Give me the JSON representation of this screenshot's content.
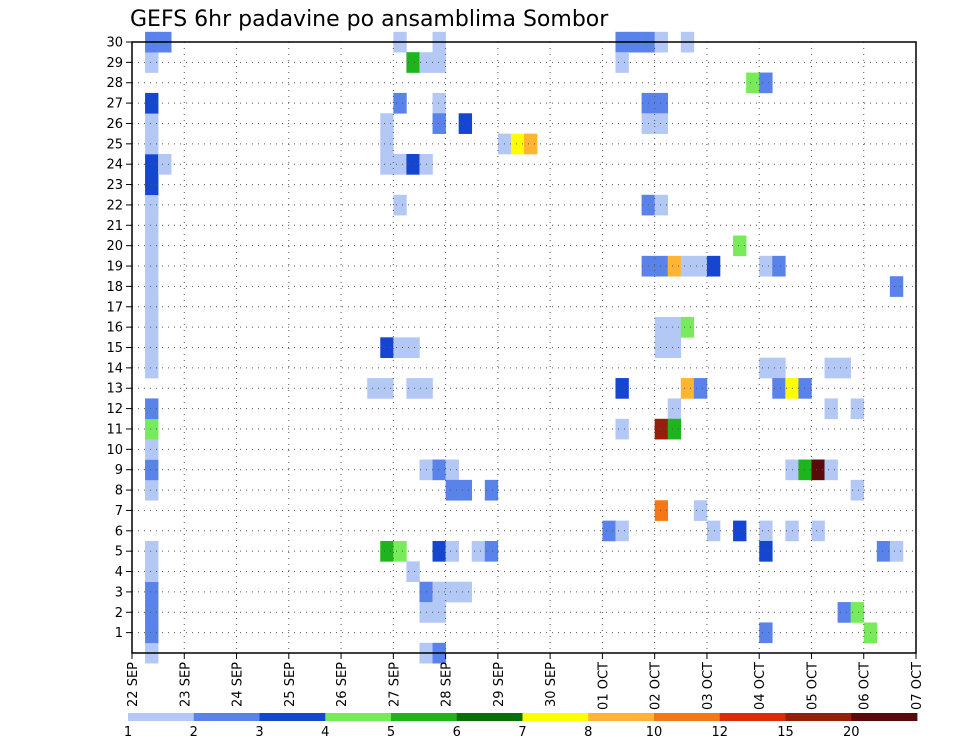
{
  "chart_data": {
    "type": "heatmap",
    "title": "GEFS 6hr padavine po ansamblima Sombor",
    "xlabel": "",
    "ylabel": "",
    "x_ticks": [
      "22 SEP",
      "23 SEP",
      "24 SEP",
      "25 SEP",
      "26 SEP",
      "27 SEP",
      "28 SEP",
      "29 SEP",
      "30 SEP",
      "01 OCT",
      "02 OCT",
      "03 OCT",
      "04 OCT",
      "05 OCT",
      "06 OCT",
      "07 OCT"
    ],
    "y_ticks": [
      1,
      2,
      3,
      4,
      5,
      6,
      7,
      8,
      9,
      10,
      11,
      12,
      13,
      14,
      15,
      16,
      17,
      18,
      19,
      20,
      21,
      22,
      23,
      24,
      25,
      26,
      27,
      28,
      29,
      30
    ],
    "xlim": [
      0,
      60
    ],
    "ylim": [
      0,
      30
    ],
    "grid": true,
    "x_unit": "6-hour steps from 22 SEP 00Z",
    "y_unit": "ensemble member",
    "colorbar": {
      "labels": [
        "1",
        "2",
        "3",
        "4",
        "5",
        "6",
        "7",
        "8",
        "10",
        "12",
        "15",
        "20"
      ],
      "colors": [
        "#b4c8f5",
        "#5a82eb",
        "#1446d2",
        "#78eb5a",
        "#1eb41e",
        "#0a6e0a",
        "#ffff00",
        "#ffb432",
        "#f57814",
        "#dc2d0a",
        "#961e0a",
        "#5a0a0a"
      ]
    },
    "cells": [
      {
        "x": 1,
        "y": 0,
        "v": 1
      },
      {
        "x": 1,
        "y": 1,
        "v": 2
      },
      {
        "x": 1,
        "y": 2,
        "v": 2
      },
      {
        "x": 1,
        "y": 3,
        "v": 2
      },
      {
        "x": 1,
        "y": 4,
        "v": 1
      },
      {
        "x": 1,
        "y": 5,
        "v": 1
      },
      {
        "x": 1,
        "y": 8,
        "v": 1
      },
      {
        "x": 1,
        "y": 9,
        "v": 2
      },
      {
        "x": 1,
        "y": 10,
        "v": 1
      },
      {
        "x": 1,
        "y": 11,
        "v": 4
      },
      {
        "x": 1,
        "y": 12,
        "v": 2
      },
      {
        "x": 1,
        "y": 14,
        "v": 1
      },
      {
        "x": 1,
        "y": 15,
        "v": 1
      },
      {
        "x": 1,
        "y": 16,
        "v": 1
      },
      {
        "x": 1,
        "y": 17,
        "v": 1
      },
      {
        "x": 1,
        "y": 18,
        "v": 1
      },
      {
        "x": 1,
        "y": 19,
        "v": 1
      },
      {
        "x": 1,
        "y": 20,
        "v": 1
      },
      {
        "x": 1,
        "y": 21,
        "v": 1
      },
      {
        "x": 1,
        "y": 22,
        "v": 1
      },
      {
        "x": 1,
        "y": 23,
        "v": 3
      },
      {
        "x": 1,
        "y": 24,
        "v": 3
      },
      {
        "x": 1,
        "y": 25,
        "v": 1
      },
      {
        "x": 1,
        "y": 26,
        "v": 1
      },
      {
        "x": 1,
        "y": 27,
        "v": 3
      },
      {
        "x": 1,
        "y": 29,
        "v": 1
      },
      {
        "x": 1,
        "y": 30,
        "v": 2
      },
      {
        "x": 2,
        "y": 30,
        "v": 2
      },
      {
        "x": 2,
        "y": 24,
        "v": 1
      },
      {
        "x": 18,
        "y": 13,
        "v": 1
      },
      {
        "x": 19,
        "y": 13,
        "v": 1
      },
      {
        "x": 19,
        "y": 25,
        "v": 1
      },
      {
        "x": 19,
        "y": 26,
        "v": 1
      },
      {
        "x": 20,
        "y": 30,
        "v": 1
      },
      {
        "x": 19,
        "y": 24,
        "v": 1
      },
      {
        "x": 20,
        "y": 24,
        "v": 1
      },
      {
        "x": 20,
        "y": 27,
        "v": 2
      },
      {
        "x": 20,
        "y": 22,
        "v": 1
      },
      {
        "x": 19,
        "y": 15,
        "v": 3
      },
      {
        "x": 20,
        "y": 15,
        "v": 1
      },
      {
        "x": 21,
        "y": 15,
        "v": 1
      },
      {
        "x": 19,
        "y": 5,
        "v": 5
      },
      {
        "x": 20,
        "y": 5,
        "v": 4
      },
      {
        "x": 21,
        "y": 4,
        "v": 1
      },
      {
        "x": 21,
        "y": 24,
        "v": 3
      },
      {
        "x": 22,
        "y": 24,
        "v": 1
      },
      {
        "x": 21,
        "y": 29,
        "v": 5
      },
      {
        "x": 22,
        "y": 29,
        "v": 1
      },
      {
        "x": 23,
        "y": 29,
        "v": 1
      },
      {
        "x": 23,
        "y": 30,
        "v": 1
      },
      {
        "x": 23,
        "y": 27,
        "v": 1
      },
      {
        "x": 23,
        "y": 26,
        "v": 2
      },
      {
        "x": 25,
        "y": 26,
        "v": 3
      },
      {
        "x": 21,
        "y": 13,
        "v": 1
      },
      {
        "x": 22,
        "y": 13,
        "v": 1
      },
      {
        "x": 22,
        "y": 9,
        "v": 1
      },
      {
        "x": 23,
        "y": 9,
        "v": 2
      },
      {
        "x": 24,
        "y": 9,
        "v": 1
      },
      {
        "x": 24,
        "y": 8,
        "v": 2
      },
      {
        "x": 25,
        "y": 8,
        "v": 2
      },
      {
        "x": 22,
        "y": 3,
        "v": 2
      },
      {
        "x": 23,
        "y": 3,
        "v": 1
      },
      {
        "x": 24,
        "y": 3,
        "v": 1
      },
      {
        "x": 22,
        "y": 2,
        "v": 1
      },
      {
        "x": 23,
        "y": 2,
        "v": 1
      },
      {
        "x": 22,
        "y": 0,
        "v": 1
      },
      {
        "x": 23,
        "y": 0,
        "v": 2
      },
      {
        "x": 23,
        "y": 5,
        "v": 3
      },
      {
        "x": 24,
        "y": 5,
        "v": 1
      },
      {
        "x": 26,
        "y": 5,
        "v": 1
      },
      {
        "x": 27,
        "y": 5,
        "v": 2
      },
      {
        "x": 27,
        "y": 8,
        "v": 2
      },
      {
        "x": 25,
        "y": 3,
        "v": 1
      },
      {
        "x": 28,
        "y": 25,
        "v": 1
      },
      {
        "x": 29,
        "y": 25,
        "v": 7
      },
      {
        "x": 30,
        "y": 25,
        "v": 8
      },
      {
        "x": 37,
        "y": 30,
        "v": 2
      },
      {
        "x": 38,
        "y": 30,
        "v": 2
      },
      {
        "x": 37,
        "y": 29,
        "v": 1
      },
      {
        "x": 39,
        "y": 30,
        "v": 2
      },
      {
        "x": 40,
        "y": 30,
        "v": 1
      },
      {
        "x": 42,
        "y": 30,
        "v": 1
      },
      {
        "x": 39,
        "y": 27,
        "v": 2
      },
      {
        "x": 40,
        "y": 27,
        "v": 2
      },
      {
        "x": 39,
        "y": 26,
        "v": 1
      },
      {
        "x": 40,
        "y": 26,
        "v": 1
      },
      {
        "x": 39,
        "y": 22,
        "v": 2
      },
      {
        "x": 40,
        "y": 22,
        "v": 1
      },
      {
        "x": 39,
        "y": 19,
        "v": 2
      },
      {
        "x": 40,
        "y": 19,
        "v": 2
      },
      {
        "x": 41,
        "y": 19,
        "v": 8
      },
      {
        "x": 42,
        "y": 19,
        "v": 1
      },
      {
        "x": 43,
        "y": 19,
        "v": 1
      },
      {
        "x": 44,
        "y": 19,
        "v": 3
      },
      {
        "x": 40,
        "y": 16,
        "v": 1
      },
      {
        "x": 41,
        "y": 16,
        "v": 1
      },
      {
        "x": 42,
        "y": 16,
        "v": 4
      },
      {
        "x": 40,
        "y": 15,
        "v": 1
      },
      {
        "x": 41,
        "y": 15,
        "v": 1
      },
      {
        "x": 37,
        "y": 13,
        "v": 3
      },
      {
        "x": 42,
        "y": 13,
        "v": 8
      },
      {
        "x": 43,
        "y": 13,
        "v": 2
      },
      {
        "x": 41,
        "y": 12,
        "v": 1
      },
      {
        "x": 37,
        "y": 11,
        "v": 1
      },
      {
        "x": 40,
        "y": 11,
        "v": 15
      },
      {
        "x": 41,
        "y": 11,
        "v": 5
      },
      {
        "x": 40,
        "y": 7,
        "v": 10
      },
      {
        "x": 43,
        "y": 7,
        "v": 1
      },
      {
        "x": 36,
        "y": 6,
        "v": 2
      },
      {
        "x": 37,
        "y": 6,
        "v": 1
      },
      {
        "x": 44,
        "y": 6,
        "v": 1
      },
      {
        "x": 46,
        "y": 6,
        "v": 3
      },
      {
        "x": 48,
        "y": 6,
        "v": 1
      },
      {
        "x": 50,
        "y": 6,
        "v": 1
      },
      {
        "x": 52,
        "y": 6,
        "v": 1
      },
      {
        "x": 47,
        "y": 28,
        "v": 4
      },
      {
        "x": 48,
        "y": 28,
        "v": 2
      },
      {
        "x": 46,
        "y": 20,
        "v": 4
      },
      {
        "x": 48,
        "y": 19,
        "v": 1
      },
      {
        "x": 49,
        "y": 19,
        "v": 2
      },
      {
        "x": 48,
        "y": 14,
        "v": 1
      },
      {
        "x": 49,
        "y": 14,
        "v": 1
      },
      {
        "x": 53,
        "y": 14,
        "v": 1
      },
      {
        "x": 54,
        "y": 14,
        "v": 1
      },
      {
        "x": 49,
        "y": 13,
        "v": 2
      },
      {
        "x": 50,
        "y": 13,
        "v": 7
      },
      {
        "x": 51,
        "y": 13,
        "v": 2
      },
      {
        "x": 53,
        "y": 12,
        "v": 1
      },
      {
        "x": 55,
        "y": 12,
        "v": 1
      },
      {
        "x": 50,
        "y": 9,
        "v": 1
      },
      {
        "x": 51,
        "y": 9,
        "v": 5
      },
      {
        "x": 52,
        "y": 9,
        "v": 20
      },
      {
        "x": 53,
        "y": 9,
        "v": 1
      },
      {
        "x": 55,
        "y": 8,
        "v": 1
      },
      {
        "x": 48,
        "y": 5,
        "v": 3
      },
      {
        "x": 48,
        "y": 1,
        "v": 2
      },
      {
        "x": 54,
        "y": 2,
        "v": 2
      },
      {
        "x": 55,
        "y": 2,
        "v": 4
      },
      {
        "x": 56,
        "y": 1,
        "v": 4
      },
      {
        "x": 58,
        "y": 18,
        "v": 2
      },
      {
        "x": 57,
        "y": 5,
        "v": 2
      },
      {
        "x": 58,
        "y": 5,
        "v": 1
      }
    ]
  }
}
